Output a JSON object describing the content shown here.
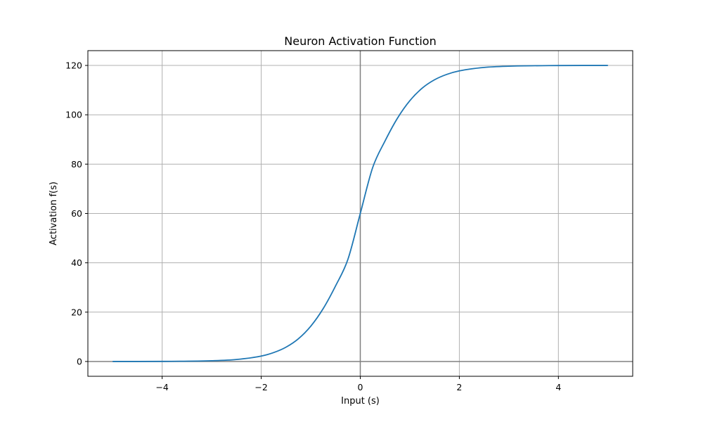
{
  "chart_data": {
    "type": "line",
    "title": "Neuron Activation Function",
    "xlabel": "Input (s)",
    "ylabel": "Activation f(s)",
    "xlim": [
      -5.5,
      5.5
    ],
    "ylim": [
      -6,
      126
    ],
    "xticks": [
      {
        "value": -4,
        "label": "−4"
      },
      {
        "value": -2,
        "label": "−2"
      },
      {
        "value": 0,
        "label": "0"
      },
      {
        "value": 2,
        "label": "2"
      },
      {
        "value": 4,
        "label": "4"
      }
    ],
    "yticks": [
      {
        "value": 0,
        "label": "0"
      },
      {
        "value": 20,
        "label": "20"
      },
      {
        "value": 40,
        "label": "40"
      },
      {
        "value": 60,
        "label": "60"
      },
      {
        "value": 80,
        "label": "80"
      },
      {
        "value": 100,
        "label": "100"
      },
      {
        "value": 120,
        "label": "120"
      }
    ],
    "grid": true,
    "reference_lines": {
      "x": 0,
      "y": 0,
      "color": "#808080"
    },
    "series": [
      {
        "color": "#1f77b4",
        "x": [
          -5,
          -4,
          -3,
          -2.5,
          -2,
          -1.75,
          -1.5,
          -1.25,
          -1,
          -0.75,
          -0.5,
          -0.25,
          0,
          0.25,
          0.5,
          0.75,
          1,
          1.25,
          1.5,
          1.75,
          2,
          2.5,
          3,
          4,
          5
        ],
        "y": [
          0.01,
          0.04,
          0.3,
          0.8,
          2.2,
          3.6,
          5.8,
          9.2,
          14.3,
          21.4,
          30.6,
          41.4,
          60,
          78.6,
          89.4,
          98.6,
          105.7,
          110.8,
          114.2,
          116.4,
          117.8,
          119.2,
          119.7,
          119.96,
          119.99
        ]
      }
    ]
  }
}
